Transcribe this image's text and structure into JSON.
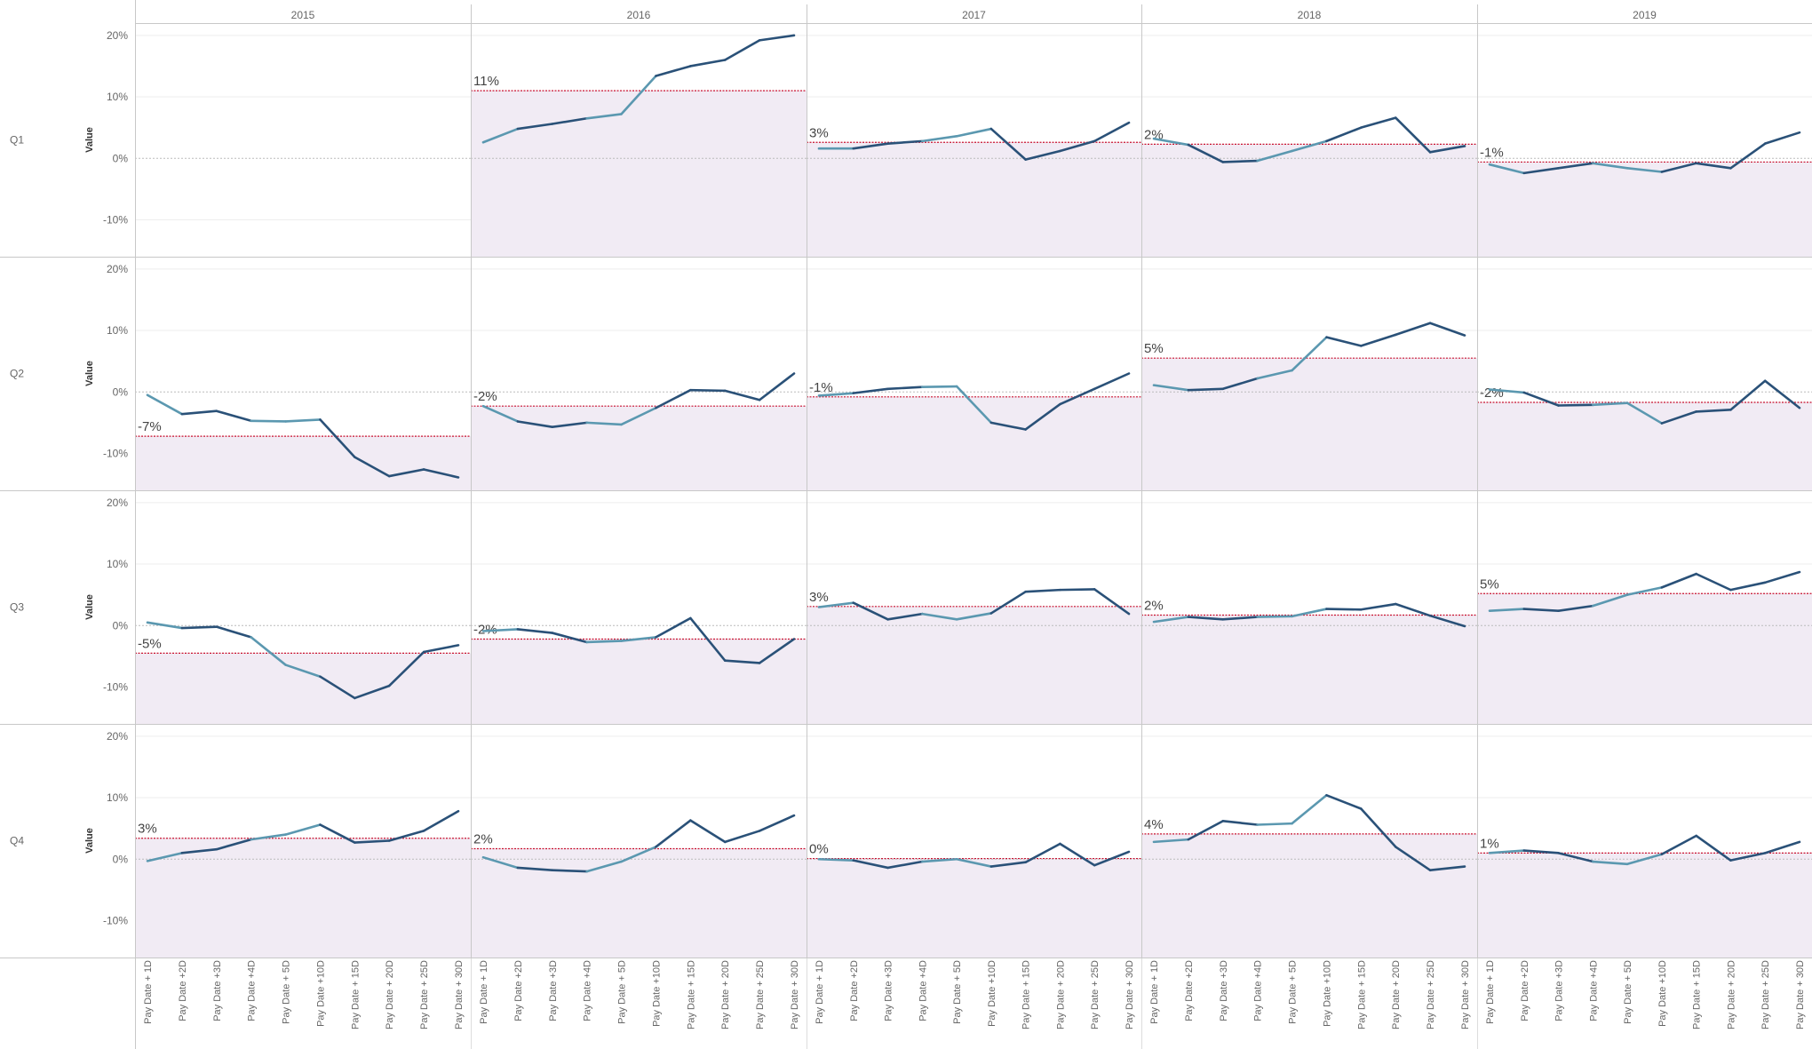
{
  "chart_data": {
    "type": "line",
    "layout": "small-multiples",
    "columns": [
      "2015",
      "2016",
      "2017",
      "2018",
      "2019"
    ],
    "rows": [
      "Q1",
      "Q2",
      "Q3",
      "Q4"
    ],
    "ylabel": "Value",
    "yticks": [
      "20%",
      "10%",
      "0%",
      "-10%"
    ],
    "ylim": [
      -16,
      22
    ],
    "x": [
      "Pay Date + 1D",
      "Pay Date +2D",
      "Pay Date +3D",
      "Pay Date +4D",
      "Pay Date + 5D",
      "Pay Date +10D",
      "Pay Date + 15D",
      "Pay Date + 20D",
      "Pay Date + 25D",
      "Pay Date + 30D"
    ],
    "colors": {
      "line": "#2a5178",
      "line_light": "#5b98b0",
      "avg_line": "#c8102e",
      "band": "#f1ebf4",
      "zero_line": "#bbbbbb",
      "grid": "#eeeeee",
      "divider": "#c8c8c8"
    },
    "cells": [
      {
        "col": 0,
        "row": 0,
        "values": [],
        "avg_label": "",
        "avg": null
      },
      {
        "col": 1,
        "row": 0,
        "values": [
          2.6,
          4.8,
          5.6,
          6.5,
          7.2,
          13.4,
          15.0,
          16.0,
          19.2,
          20.0
        ],
        "avg_label": "11%",
        "avg": 11.0
      },
      {
        "col": 2,
        "row": 0,
        "values": [
          1.6,
          1.6,
          2.4,
          2.8,
          3.6,
          4.8,
          -0.2,
          1.2,
          2.8,
          5.8
        ],
        "avg_label": "3%",
        "avg": 2.6
      },
      {
        "col": 3,
        "row": 0,
        "values": [
          3.2,
          2.2,
          -0.6,
          -0.4,
          1.2,
          2.8,
          5.0,
          6.6,
          1.0,
          2.0
        ],
        "avg_label": "2%",
        "avg": 2.3
      },
      {
        "col": 4,
        "row": 0,
        "values": [
          -1.0,
          -2.4,
          -1.6,
          -0.8,
          -1.6,
          -2.2,
          -0.8,
          -1.6,
          2.4,
          4.2
        ],
        "avg_label": "-1%",
        "avg": -0.6
      },
      {
        "col": 0,
        "row": 1,
        "values": [
          -0.5,
          -3.6,
          -3.1,
          -4.7,
          -4.8,
          -4.5,
          -10.6,
          -13.7,
          -12.6,
          -13.9
        ],
        "avg_label": "-7%",
        "avg": -7.2
      },
      {
        "col": 1,
        "row": 1,
        "values": [
          -2.3,
          -4.8,
          -5.7,
          -5.0,
          -5.3,
          -2.6,
          0.3,
          0.2,
          -1.3,
          3.0
        ],
        "avg_label": "-2%",
        "avg": -2.3
      },
      {
        "col": 2,
        "row": 1,
        "values": [
          -0.6,
          -0.2,
          0.5,
          0.8,
          0.9,
          -5.0,
          -6.1,
          -2.0,
          0.5,
          3.0
        ],
        "avg_label": "-1%",
        "avg": -0.8
      },
      {
        "col": 3,
        "row": 1,
        "values": [
          1.1,
          0.3,
          0.5,
          2.2,
          3.5,
          8.9,
          7.5,
          9.3,
          11.2,
          9.2
        ],
        "avg_label": "5%",
        "avg": 5.5
      },
      {
        "col": 4,
        "row": 1,
        "values": [
          0.4,
          -0.1,
          -2.2,
          -2.1,
          -1.8,
          -5.1,
          -3.2,
          -2.9,
          1.8,
          -2.6
        ],
        "avg_label": "-2%",
        "avg": -1.7
      },
      {
        "col": 0,
        "row": 2,
        "values": [
          0.5,
          -0.4,
          -0.2,
          -1.9,
          -6.4,
          -8.3,
          -11.8,
          -9.8,
          -4.3,
          -3.2
        ],
        "avg_label": "-5%",
        "avg": -4.5
      },
      {
        "col": 1,
        "row": 2,
        "values": [
          -0.9,
          -0.6,
          -1.2,
          -2.7,
          -2.5,
          -1.9,
          1.2,
          -5.7,
          -6.1,
          -2.2
        ],
        "avg_label": "-2%",
        "avg": -2.2
      },
      {
        "col": 2,
        "row": 2,
        "values": [
          3.0,
          3.7,
          1.0,
          1.9,
          1.0,
          2.0,
          5.5,
          5.8,
          5.9,
          1.9
        ],
        "avg_label": "3%",
        "avg": 3.1
      },
      {
        "col": 3,
        "row": 2,
        "values": [
          0.6,
          1.4,
          1.0,
          1.4,
          1.5,
          2.7,
          2.6,
          3.5,
          1.6,
          -0.1
        ],
        "avg_label": "2%",
        "avg": 1.7
      },
      {
        "col": 4,
        "row": 2,
        "values": [
          2.4,
          2.7,
          2.4,
          3.2,
          5.0,
          6.2,
          8.4,
          5.8,
          7.0,
          8.7
        ],
        "avg_label": "5%",
        "avg": 5.2
      },
      {
        "col": 0,
        "row": 3,
        "values": [
          -0.3,
          1.0,
          1.6,
          3.2,
          4.0,
          5.6,
          2.7,
          3.0,
          4.6,
          7.8
        ],
        "avg_label": "3%",
        "avg": 3.4
      },
      {
        "col": 1,
        "row": 3,
        "values": [
          0.3,
          -1.4,
          -1.8,
          -2.0,
          -0.4,
          2.0,
          6.3,
          2.8,
          4.6,
          7.1
        ],
        "avg_label": "2%",
        "avg": 1.7
      },
      {
        "col": 2,
        "row": 3,
        "values": [
          0.0,
          -0.2,
          -1.4,
          -0.4,
          0.0,
          -1.2,
          -0.5,
          2.5,
          -1.0,
          1.2
        ],
        "avg_label": "0%",
        "avg": 0.1
      },
      {
        "col": 3,
        "row": 3,
        "values": [
          2.8,
          3.2,
          6.2,
          5.6,
          5.8,
          10.4,
          8.2,
          2.0,
          -1.8,
          -1.2
        ],
        "avg_label": "4%",
        "avg": 4.1
      },
      {
        "col": 4,
        "row": 3,
        "values": [
          1.0,
          1.4,
          1.0,
          -0.4,
          -0.8,
          0.8,
          3.8,
          -0.2,
          1.0,
          2.8
        ],
        "avg_label": "1%",
        "avg": 1.0
      }
    ]
  }
}
